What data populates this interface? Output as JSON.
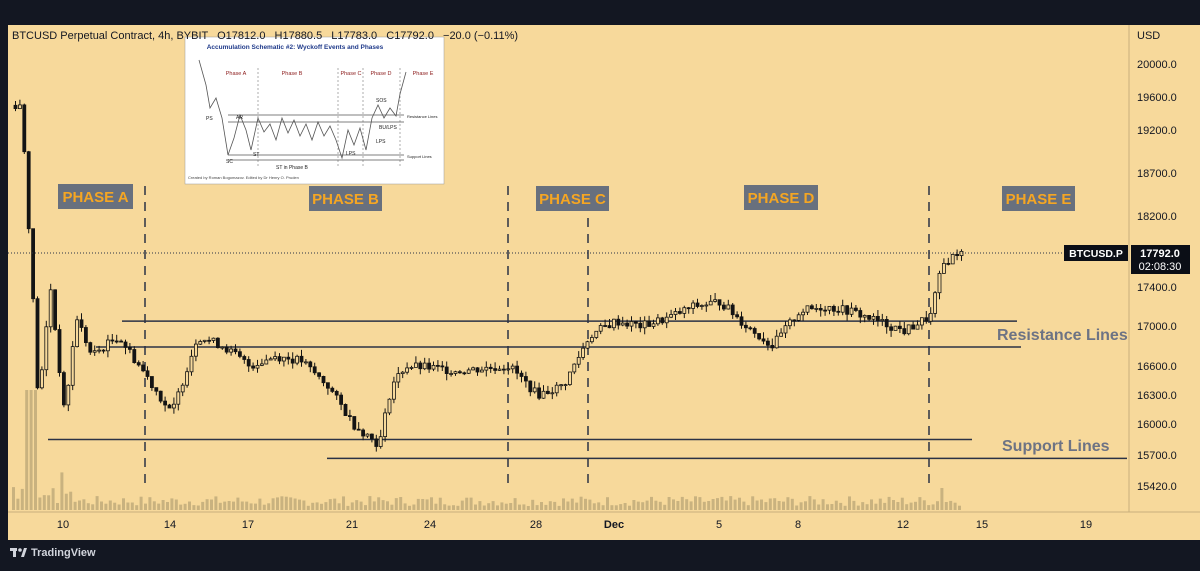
{
  "header": {
    "symbol_line": "BTCUSD Perpetual Contract, 4h, BYBIT",
    "open_label": "O",
    "open": "17812.0",
    "high_label": "H",
    "high": "17880.5",
    "low_label": "L",
    "low": "17783.0",
    "close_label": "C",
    "close": "17792.0",
    "change": "−20.0 (−0.11%)"
  },
  "price_axis": {
    "currency": "USD",
    "ticks": [
      "20000.0",
      "19600.0",
      "19200.0",
      "18700.0",
      "18200.0",
      "17400.0",
      "17000.0",
      "16600.0",
      "16300.0",
      "16000.0",
      "15700.0",
      "15420.0"
    ]
  },
  "time_axis": {
    "ticks": [
      "10",
      "14",
      "17",
      "21",
      "24",
      "28",
      "Dec",
      "5",
      "8",
      "12",
      "15",
      "19"
    ]
  },
  "last_price": {
    "symbol": "BTCUSD.P",
    "price": "17792.0",
    "countdown": "02:08:30"
  },
  "phases": [
    {
      "label": "PHASE A"
    },
    {
      "label": "PHASE B"
    },
    {
      "label": "PHASE C"
    },
    {
      "label": "PHASE D"
    },
    {
      "label": "PHASE E"
    }
  ],
  "annotations": {
    "resistance": "Resistance Lines",
    "support": "Support Lines"
  },
  "inset": {
    "title": "Accumulation Schematic #2: Wyckoff Events and Phases",
    "phases": [
      "Phase A",
      "Phase B",
      "Phase C",
      "Phase D",
      "Phase E"
    ],
    "events": [
      "PS",
      "SC",
      "AR",
      "ST",
      "ST in Phase B",
      "LPS",
      "SOS",
      "BU/LPS",
      "LPS"
    ],
    "resistance_label": "Resistance Lines",
    "support_label": "Support Lines",
    "credit": "Created by Roman Bogomazov. Edited by Dr Henry O. Pruden"
  },
  "branding": {
    "name": "TradingView"
  },
  "colors": {
    "chart_bg": "#f7d99b",
    "frame_bg": "#131722",
    "phase_box": "#68707e",
    "phase_text": "#f5a623",
    "level_line": "#2b3245",
    "annotation_text": "#6d7384",
    "candle": "#141414",
    "price_badge": "#0b0e16"
  },
  "chart_data": {
    "type": "candlestick",
    "symbol": "BTCUSD Perpetual Contract",
    "timeframe": "4h",
    "exchange": "BYBIT",
    "currency": "USD",
    "series": [
      {
        "name": "BTCUSD",
        "anchors": [
          [
            "Nov 8",
            19500
          ],
          [
            "Nov 9",
            16200
          ],
          [
            "Nov 9",
            17400
          ],
          [
            "Nov 10",
            16100
          ],
          [
            "Nov 10",
            17100
          ],
          [
            "Nov 11",
            16700
          ],
          [
            "Nov 12",
            16900
          ],
          [
            "Nov 13",
            16500
          ],
          [
            "Nov 14",
            16100
          ],
          [
            "Nov 15",
            16900
          ],
          [
            "Nov 16",
            16800
          ],
          [
            "Nov 17",
            16600
          ],
          [
            "Nov 18",
            16700
          ],
          [
            "Nov 19",
            16650
          ],
          [
            "Nov 20",
            16400
          ],
          [
            "Nov 21",
            16000
          ],
          [
            "Nov 22",
            15800
          ],
          [
            "Nov 22",
            16400
          ],
          [
            "Nov 23",
            16600
          ],
          [
            "Nov 24",
            16580
          ],
          [
            "Nov 25",
            16550
          ],
          [
            "Nov 27",
            16600
          ],
          [
            "Nov 28",
            16300
          ],
          [
            "Nov 29",
            16400
          ],
          [
            "Nov 30",
            16900
          ],
          [
            "Dec 1",
            17050
          ],
          [
            "Dec 2",
            17000
          ],
          [
            "Dec 3",
            17080
          ],
          [
            "Dec 4",
            17200
          ],
          [
            "Dec 5",
            17250
          ],
          [
            "Dec 6",
            17000
          ],
          [
            "Dec 7",
            16800
          ],
          [
            "Dec 8",
            17150
          ],
          [
            "Dec 9",
            17200
          ],
          [
            "Dec 10",
            17150
          ],
          [
            "Dec 11",
            17050
          ],
          [
            "Dec 12",
            16950
          ],
          [
            "Dec 13",
            17100
          ],
          [
            "Dec 13",
            17650
          ],
          [
            "Dec 14",
            17792
          ]
        ]
      }
    ],
    "levels": [
      {
        "name": "Resistance Lines",
        "values": [
          17050,
          16790
        ]
      },
      {
        "name": "Support Lines",
        "values": [
          15850,
          15670
        ]
      }
    ],
    "phase_boundaries": [
      "Nov 13",
      "Nov 27",
      "Nov 30",
      "Dec 13"
    ],
    "last_price": 17792.0,
    "ylim": [
      15300,
      20400
    ],
    "x_ticks": [
      "10",
      "14",
      "17",
      "21",
      "24",
      "28",
      "Dec",
      "5",
      "8",
      "12",
      "15",
      "19"
    ],
    "y_ticks": [
      20000,
      19600,
      19200,
      18700,
      18200,
      17400,
      17000,
      16600,
      16300,
      16000,
      15700,
      15420
    ],
    "grid": false
  }
}
